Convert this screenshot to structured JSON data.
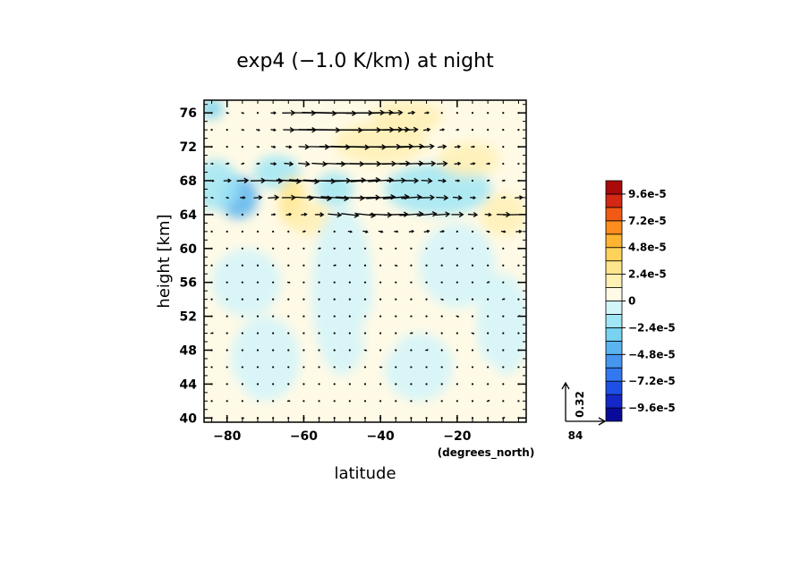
{
  "chart_data": {
    "type": "heatmap",
    "title": "exp4 (−1.0 K/km) at night",
    "xlabel": "latitude",
    "xunits": "(degrees_north)",
    "ylabel": "height [km]",
    "xlim": [
      -86,
      -2
    ],
    "ylim": [
      39.5,
      77.5
    ],
    "x_ticks": [
      -80,
      -60,
      -40,
      -20
    ],
    "x_tick_labels": [
      "−80",
      "−60",
      "−40",
      "−20"
    ],
    "y_ticks": [
      40,
      44,
      48,
      52,
      56,
      60,
      64,
      68,
      72,
      76
    ],
    "y_tick_labels": [
      "40",
      "44",
      "48",
      "52",
      "56",
      "60",
      "64",
      "68",
      "72",
      "76"
    ],
    "grid": false,
    "colorbar": {
      "levels": [
        -0.000108,
        -9.6e-05,
        -8.4e-05,
        -7.2e-05,
        -6e-05,
        -4.8e-05,
        -3.6e-05,
        -2.4e-05,
        -1.2e-05,
        0,
        1.2e-05,
        2.4e-05,
        3.6e-05,
        4.8e-05,
        6e-05,
        7.2e-05,
        8.4e-05,
        9.6e-05,
        0.000108
      ],
      "colors": [
        "#0a0a9a",
        "#1428c8",
        "#1e50e6",
        "#3278f0",
        "#4696f0",
        "#5ab4f0",
        "#78d2f0",
        "#a0e6f5",
        "#d2f5fa",
        "#fffae6",
        "#fff0b4",
        "#ffe68c",
        "#ffd25a",
        "#ffb432",
        "#ff8c1e",
        "#f05a14",
        "#d22814",
        "#aa0a0a"
      ],
      "labels": [
        "9.6e-5",
        "7.2e-5",
        "4.8e-5",
        "2.4e-5",
        "0",
        "−2.4e-5",
        "−4.8e-5",
        "−7.2e-5",
        "−9.6e-5"
      ],
      "label_values": [
        9.6e-05,
        7.2e-05,
        4.8e-05,
        2.4e-05,
        0,
        -2.4e-05,
        -4.8e-05,
        -7.2e-05,
        -9.6e-05
      ]
    },
    "field_patches": [
      {
        "lat": -77,
        "z": 66,
        "value": -4.5e-05,
        "rx": 5,
        "rz": 2.5
      },
      {
        "lat": -84,
        "z": 76.5,
        "value": -2.5e-05,
        "rx": 3,
        "rz": 1.2
      },
      {
        "lat": -83,
        "z": 67.5,
        "value": -2e-05,
        "rx": 6,
        "rz": 3
      },
      {
        "lat": -67,
        "z": 69,
        "value": -1.5e-05,
        "rx": 6,
        "rz": 2
      },
      {
        "lat": -63,
        "z": 65.5,
        "value": 3e-05,
        "rx": 3.5,
        "rz": 3
      },
      {
        "lat": -58,
        "z": 63.5,
        "value": 1.5e-05,
        "rx": 6,
        "rz": 2
      },
      {
        "lat": -52,
        "z": 67,
        "value": -1.5e-05,
        "rx": 5,
        "rz": 2
      },
      {
        "lat": -40,
        "z": 72.5,
        "value": 1.5e-05,
        "rx": 12,
        "rz": 2.5
      },
      {
        "lat": -33,
        "z": 75.5,
        "value": 1.2e-05,
        "rx": 9,
        "rz": 2
      },
      {
        "lat": -25,
        "z": 67,
        "value": -1.5e-05,
        "rx": 14,
        "rz": 3
      },
      {
        "lat": -17,
        "z": 70.5,
        "value": 1.2e-05,
        "rx": 8,
        "rz": 2
      },
      {
        "lat": -8,
        "z": 64,
        "value": 1.3e-05,
        "rx": 6,
        "rz": 2.5
      },
      {
        "lat": -75,
        "z": 56,
        "value": -1.2e-05,
        "rx": 9,
        "rz": 4
      },
      {
        "lat": -70,
        "z": 47,
        "value": -1.2e-05,
        "rx": 9,
        "rz": 5
      },
      {
        "lat": -50,
        "z": 55,
        "value": -1e-05,
        "rx": 8,
        "rz": 10
      },
      {
        "lat": -30,
        "z": 46,
        "value": -1.2e-05,
        "rx": 9,
        "rz": 4
      },
      {
        "lat": -20,
        "z": 58,
        "value": -1e-05,
        "rx": 10,
        "rz": 5
      },
      {
        "lat": -8,
        "z": 51,
        "value": -1e-05,
        "rx": 7,
        "rz": 6
      },
      {
        "lat": -15,
        "z": 44,
        "value": 1e-05,
        "rx": 7,
        "rz": 3
      },
      {
        "lat": -40,
        "z": 50,
        "value": 1e-05,
        "rx": 5,
        "rz": 3
      },
      {
        "lat": -80,
        "z": 42,
        "value": 1e-05,
        "rx": 5,
        "rz": 3
      }
    ],
    "vector_field": {
      "lat_start": -84,
      "lat_step": 4,
      "lat_count": 21,
      "z_start": 40,
      "z_step": 2,
      "z_count": 19,
      "jets": [
        {
          "z": 74,
          "lat": -48,
          "sig_lat": 12,
          "sig_z": 1.5,
          "v": 84
        },
        {
          "z": 76,
          "lat": -50,
          "sig_lat": 12,
          "sig_z": 1.3,
          "v": 55
        },
        {
          "z": 72,
          "lat": -42,
          "sig_lat": 14,
          "sig_z": 1.5,
          "v": 45
        },
        {
          "z": 70,
          "lat": -40,
          "sig_lat": 16,
          "sig_z": 1.6,
          "v": 35
        },
        {
          "z": 68,
          "lat": -55,
          "sig_lat": 20,
          "sig_z": 1.5,
          "v": 40
        },
        {
          "z": 66,
          "lat": -45,
          "sig_lat": 20,
          "sig_z": 1.5,
          "v": 35
        },
        {
          "z": 64,
          "lat": -35,
          "sig_lat": 18,
          "sig_z": 1.5,
          "v": 30
        },
        {
          "z": 64,
          "lat": -4,
          "sig_lat": 4,
          "sig_z": 1.5,
          "v": 45
        }
      ],
      "reference": {
        "u": 84,
        "u_label": "84",
        "w": 0.32,
        "w_label": "0.32"
      }
    }
  }
}
